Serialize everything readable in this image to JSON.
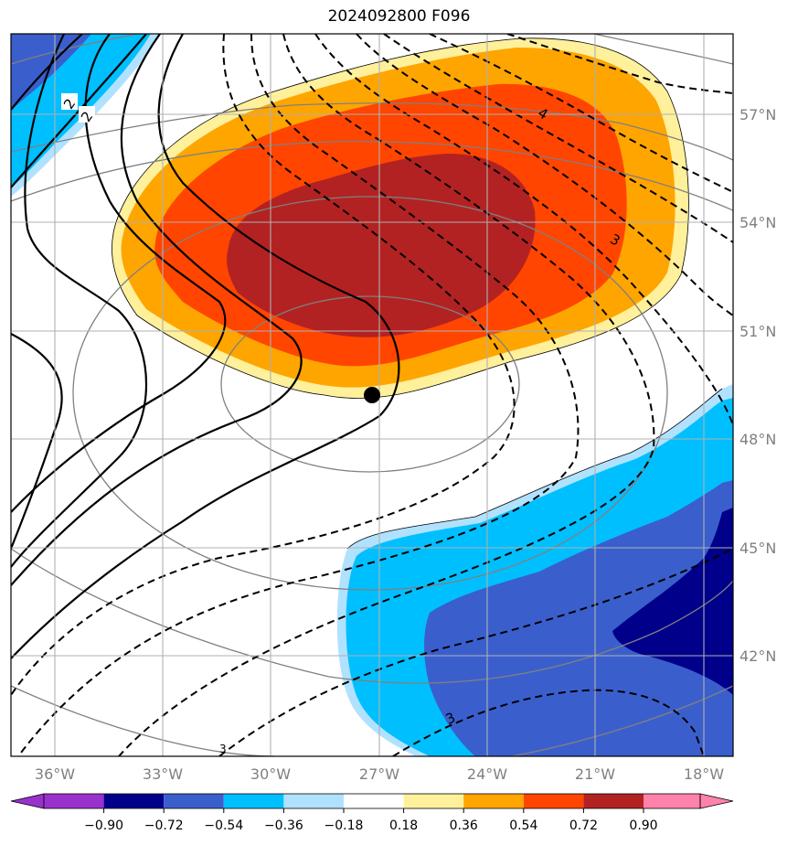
{
  "title": "2024092800 F096",
  "map": {
    "projection": "lambert-conformal",
    "extent": {
      "lon": [
        -38,
        -17.5
      ],
      "lat": [
        39,
        59
      ]
    },
    "colors": {
      "below_min": "#9932cc",
      "levels": [
        "#00008b",
        "#3a5fcd",
        "#00bfff",
        "#b0e2ff",
        "#ffffff",
        "#fff09b",
        "#ffa500",
        "#ff4500",
        "#b22222"
      ],
      "above_max": "#ff82ab",
      "thin_contour": "#808080"
    },
    "lon_ticks": [
      "36°W",
      "33°W",
      "30°W",
      "27°W",
      "24°W",
      "21°W",
      "18°W"
    ],
    "lat_ticks": [
      "57°N",
      "54°N",
      "51°N",
      "48°N",
      "45°N",
      "42°N"
    ],
    "contour_labels": {
      "a": "2",
      "b": "2",
      "c": "4",
      "d": "3",
      "e": "3",
      "f": "3"
    },
    "marker": {
      "name": "storm-center",
      "lon": -27.0,
      "lat": 49.2
    }
  },
  "colorbar": {
    "labels": [
      "−0.90",
      "−0.72",
      "−0.54",
      "−0.36",
      "−0.18",
      "0.18",
      "0.36",
      "0.54",
      "0.72",
      "0.90"
    ],
    "bounds": [
      -0.9,
      -0.72,
      -0.54,
      -0.36,
      -0.18,
      0.18,
      0.36,
      0.54,
      0.72,
      0.9
    ]
  }
}
